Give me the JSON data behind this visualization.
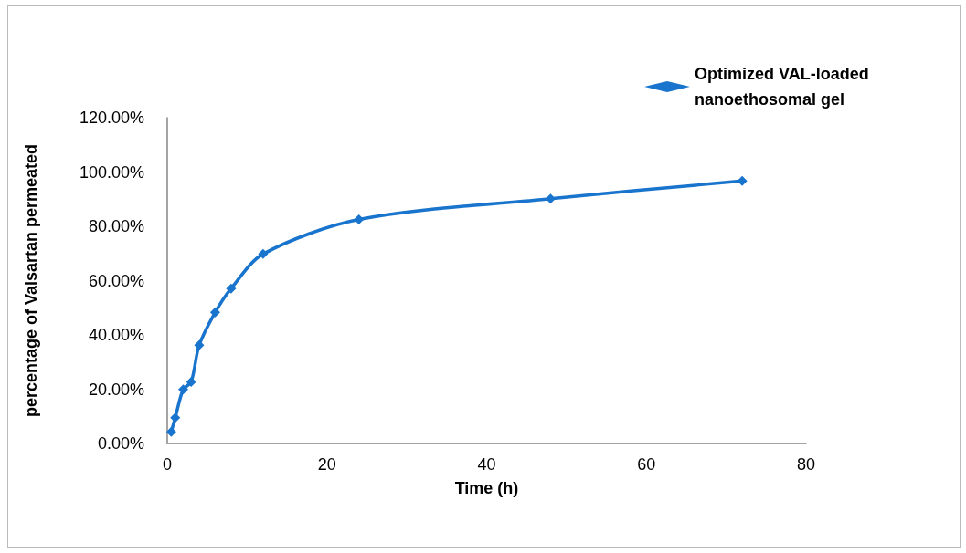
{
  "chart_data": {
    "type": "line",
    "xlabel": "Time (h)",
    "ylabel": "percentage of Valsartan permeated",
    "x": [
      0.5,
      1,
      2,
      3,
      4,
      6,
      8,
      12,
      24,
      48,
      72
    ],
    "series": [
      {
        "name": "Optimized VAL-loaded nanoethosomal gel",
        "color": "#1874cd",
        "values": [
          4.3,
          9.5,
          19.9,
          22.7,
          36.2,
          48.3,
          57.1,
          69.8,
          82.5,
          90.2,
          96.7
        ]
      }
    ],
    "xlim": [
      0,
      80
    ],
    "xticks": [
      0,
      20,
      40,
      60,
      80
    ],
    "ylim": [
      0,
      120
    ],
    "yticks": [
      {
        "value": 0,
        "label": "0.00%"
      },
      {
        "value": 20,
        "label": "20.00%"
      },
      {
        "value": 40,
        "label": "40.00%"
      },
      {
        "value": 60,
        "label": "60.00%"
      },
      {
        "value": 80,
        "label": "80.00%"
      },
      {
        "value": 100,
        "label": "100.00%"
      },
      {
        "value": 120,
        "label": "120.00%"
      }
    ],
    "grid": false,
    "legend": "top right",
    "marker": "diamond",
    "line_style": "solid"
  }
}
